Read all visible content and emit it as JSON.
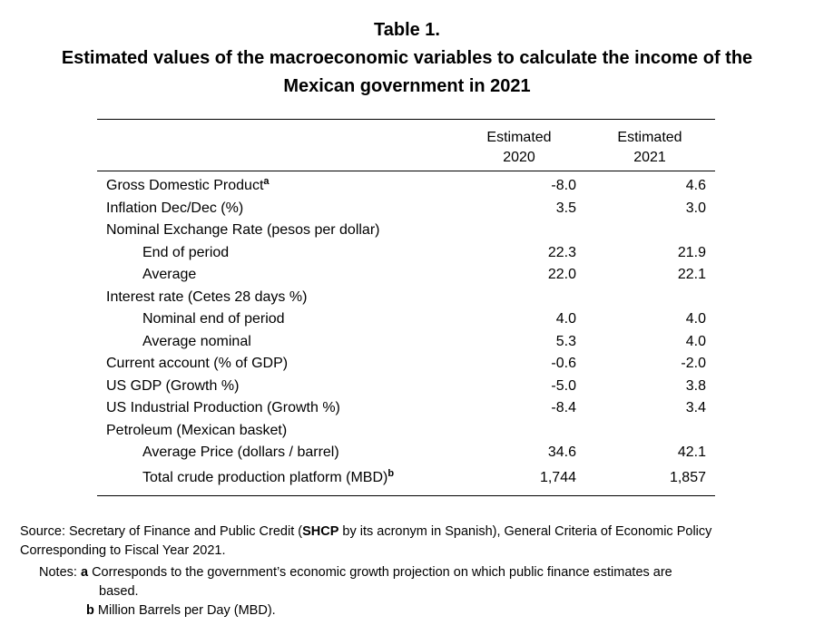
{
  "title": {
    "line1": "Table 1.",
    "line2": "Estimated values of the macroeconomic variables to calculate the income of the",
    "line3": "Mexican government in 2021"
  },
  "columns": [
    {
      "line1": "Estimated",
      "line2": "2020"
    },
    {
      "line1": "Estimated",
      "line2": "2021"
    }
  ],
  "rows": [
    {
      "label": "Gross Domestic Product",
      "sup": "a",
      "v2020": "-8.0",
      "v2021": "4.6"
    },
    {
      "label": "Inflation Dec/Dec (%)",
      "v2020": "3.5",
      "v2021": "3.0"
    },
    {
      "label": "Nominal Exchange Rate (pesos per dollar)",
      "v2020": "",
      "v2021": ""
    },
    {
      "label": "End of period",
      "v2020": "22.3",
      "v2021": "21.9"
    },
    {
      "label": "Average",
      "v2020": "22.0",
      "v2021": "22.1"
    },
    {
      "label": "Interest rate (Cetes 28 days %)",
      "v2020": "",
      "v2021": ""
    },
    {
      "label": "Nominal end of period",
      "v2020": "4.0",
      "v2021": "4.0"
    },
    {
      "label": "Average nominal",
      "v2020": "5.3",
      "v2021": "4.0"
    },
    {
      "label": "Current account (% of GDP)",
      "v2020": "-0.6",
      "v2021": "-2.0"
    },
    {
      "label": "US GDP (Growth %)",
      "v2020": "-5.0",
      "v2021": "3.8"
    },
    {
      "label": "US Industrial Production (Growth %)",
      "v2020": "-8.4",
      "v2021": "3.4"
    },
    {
      "label": "Petroleum (Mexican basket)",
      "v2020": "",
      "v2021": ""
    },
    {
      "label": "Average Price (dollars / barrel)",
      "v2020": "34.6",
      "v2021": "42.1"
    },
    {
      "label": "Total crude production platform (MBD)",
      "sup": "b",
      "v2020": "1,744",
      "v2021": "1,857"
    }
  ],
  "source": {
    "prefix": "Source: Secretary of Finance and Public Credit (",
    "bold": "SHCP",
    "suffix": " by its acronym in Spanish), General Criteria of Economic Policy Corresponding to Fiscal Year 2021."
  },
  "notes": {
    "label": "Notes:",
    "a_key": "a",
    "a_text": "Corresponds to the government’s economic growth projection on which public finance estimates are",
    "a_cont": "based.",
    "b_key": "b",
    "b_text": "Million Barrels per Day (MBD)."
  }
}
